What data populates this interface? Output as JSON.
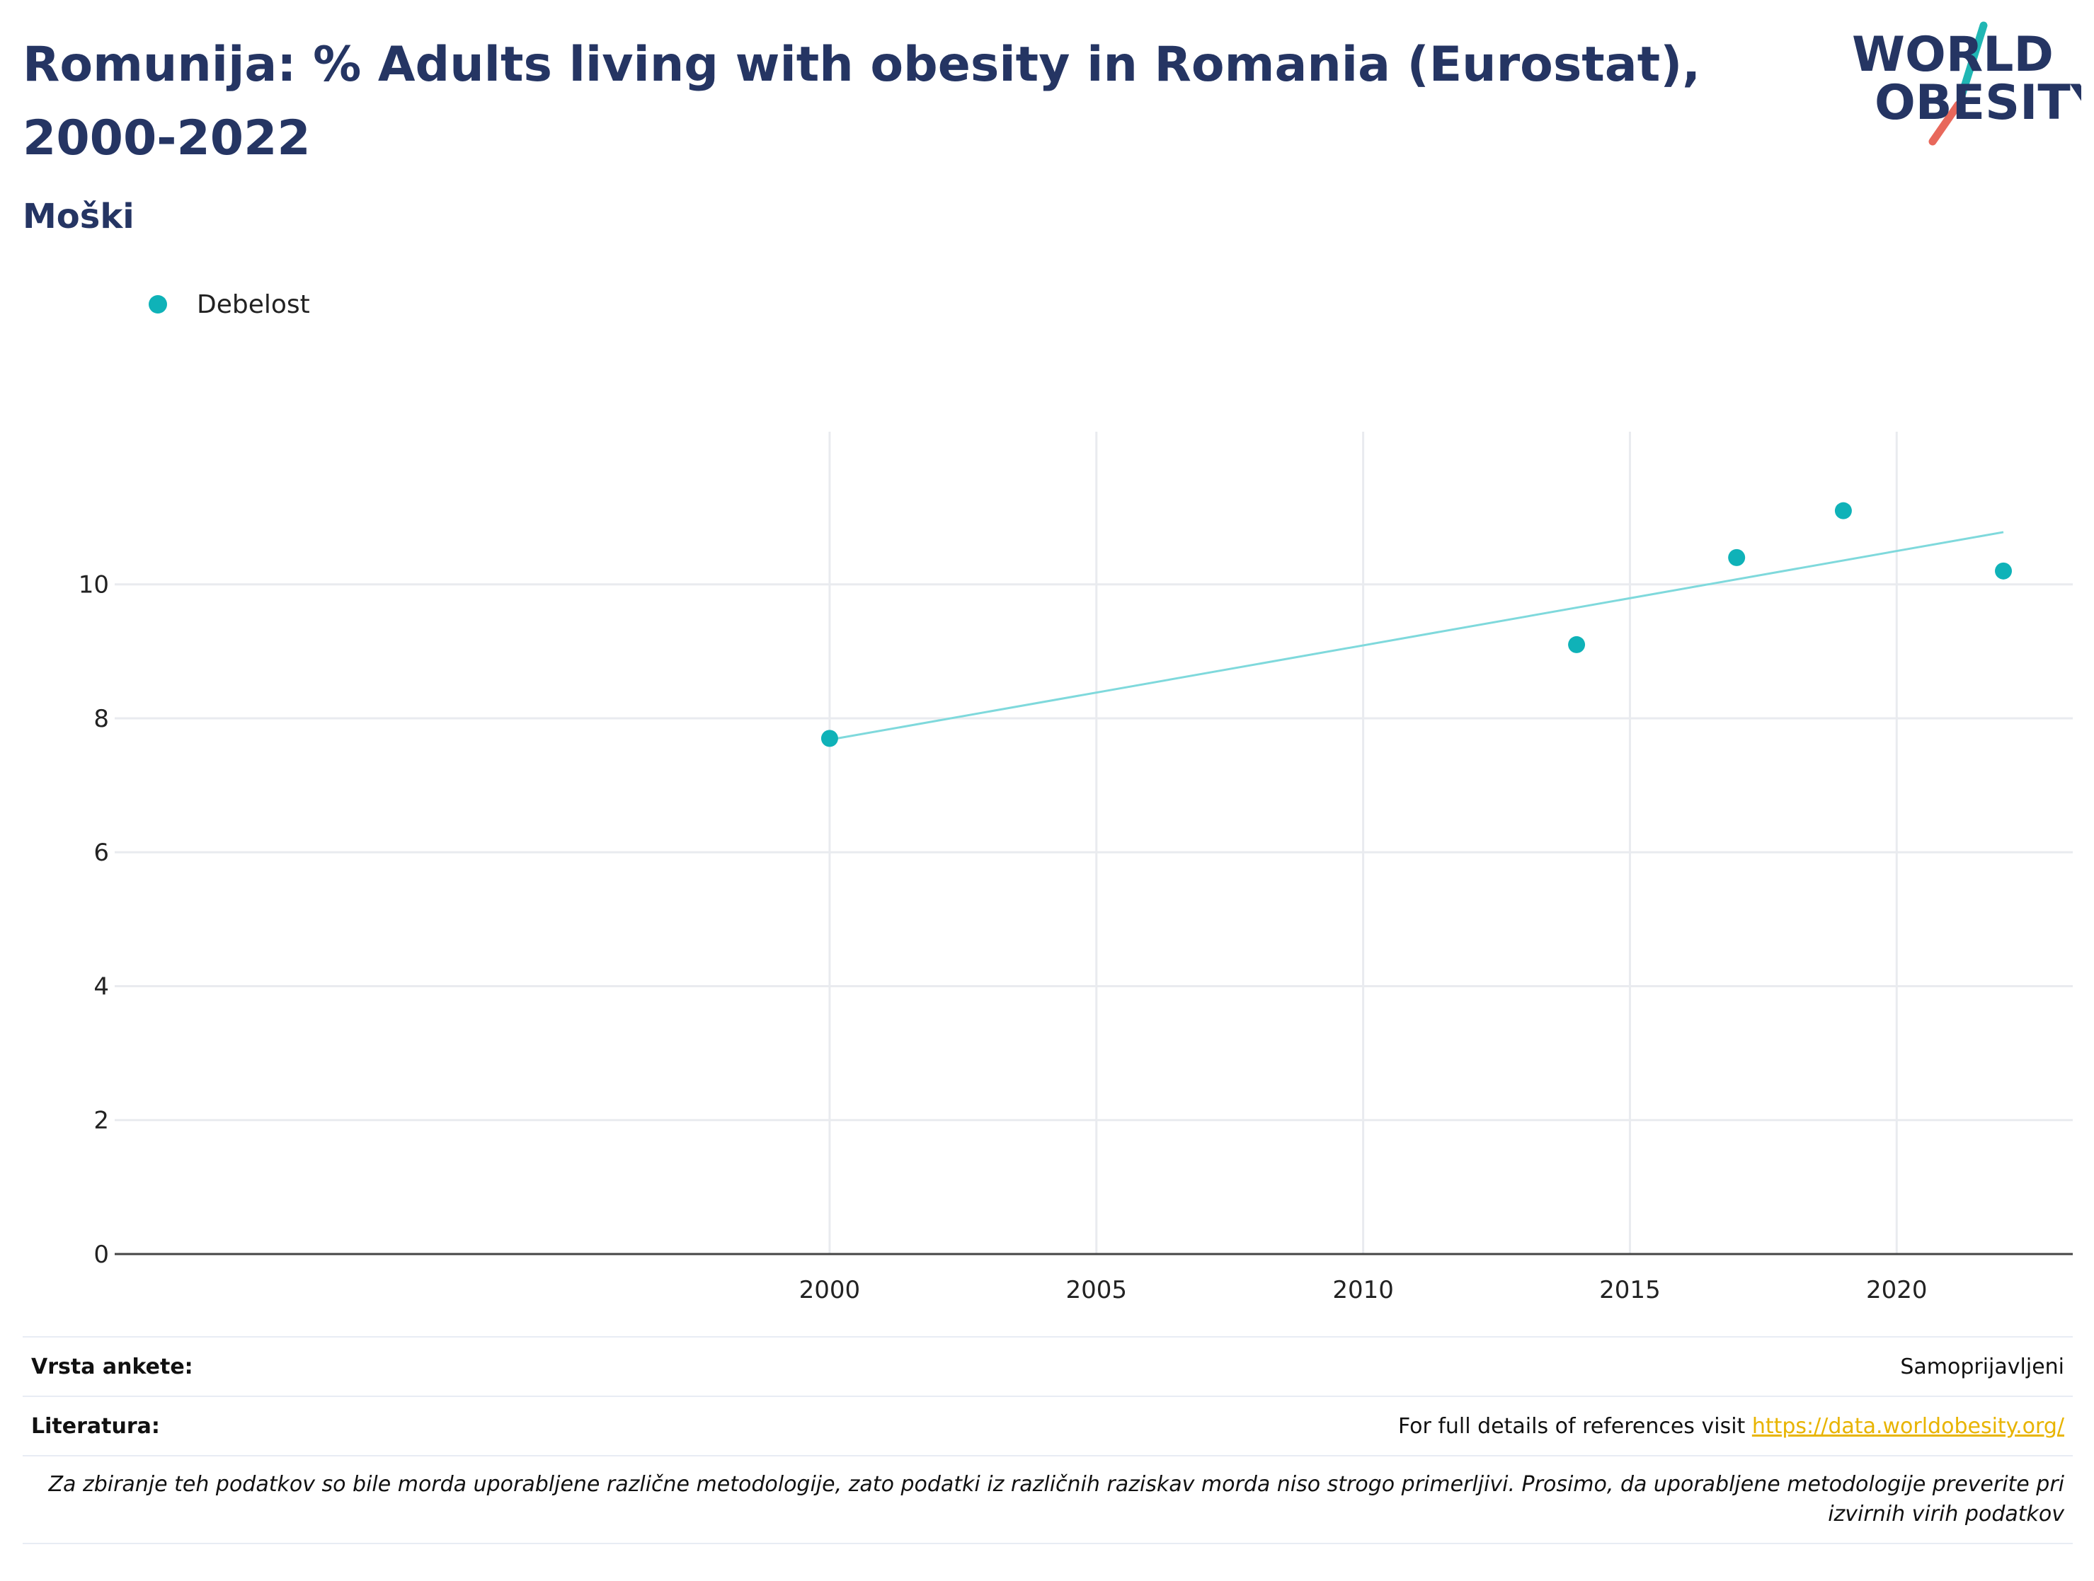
{
  "header": {
    "title": "Romunija: % Adults living with obesity in Romania (Eurostat), 2000-2022",
    "subtitle": "Moški"
  },
  "logo": {
    "line1": "WORLD",
    "line2": "OBESITY",
    "text_color": "#253563",
    "slash_teal": "#20b7b4",
    "slash_coral": "#e8685b"
  },
  "legend": {
    "label": "Debelost",
    "color": "#0fb2b8"
  },
  "chart_data": {
    "type": "scatter",
    "x": [
      2000,
      2014,
      2017,
      2019,
      2022
    ],
    "series": [
      {
        "name": "Debelost",
        "values": [
          7.7,
          9.1,
          10.4,
          11.1,
          10.2
        ],
        "color": "#0fb2b8"
      }
    ],
    "trendline": {
      "x": [
        2000,
        2022
      ],
      "y": [
        7.68,
        10.78
      ],
      "color": "#7fd9dc"
    },
    "xlim": [
      1986.6,
      2023.3
    ],
    "ylim": [
      0,
      12.28
    ],
    "xticks": [
      2000,
      2005,
      2010,
      2015,
      2020
    ],
    "yticks": [
      0,
      2,
      4,
      6,
      8,
      10
    ],
    "title": "Romunija: % Adults living with obesity in Romania (Eurostat), 2000-2022",
    "subtitle": "Moški",
    "xlabel": "",
    "ylabel": "",
    "grid": true,
    "legend_position": "top-left"
  },
  "footer": {
    "survey_label": "Vrsta ankete:",
    "survey_value": "Samoprijavljeni",
    "refs_label": "Literatura:",
    "refs_text": "For full details of references visit ",
    "refs_link": "https://data.worldobesity.org/",
    "note": "Za zbiranje teh podatkov so bile morda uporabljene različne metodologije, zato podatki iz različnih raziskav morda niso strogo primerljivi. Prosimo, da uporabljene metodologije preverite pri izvirnih virih podatkov"
  }
}
